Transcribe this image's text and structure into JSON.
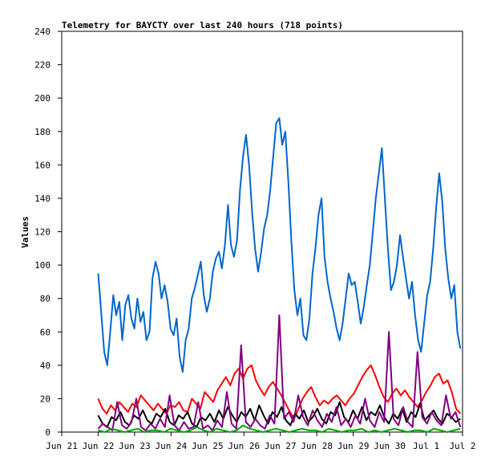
{
  "chart_data": {
    "type": "line",
    "title": "Telemetry for BAYCTY over last 240 hours (718 points)",
    "xlabel": "",
    "ylabel": "Values",
    "ylim": [
      0,
      240
    ],
    "yticks": [
      0,
      20,
      40,
      60,
      80,
      100,
      120,
      140,
      160,
      180,
      200,
      220,
      240
    ],
    "xlim": [
      "Jun 21",
      "Jul 2"
    ],
    "xticks": [
      "Jun 21",
      "Jun 22",
      "Jun 23",
      "Jun 24",
      "Jun 25",
      "Jun 26",
      "Jun 27",
      "Jun 28",
      "Jun 29",
      "Jun 30",
      "Jul 1",
      "Jul 2"
    ],
    "x_start_day": 1.0,
    "x_end_day": 10.94,
    "grid": false,
    "series": [
      {
        "color": "#0066cc",
        "values": [
          95,
          72,
          48,
          40,
          60,
          82,
          70,
          78,
          55,
          76,
          82,
          68,
          62,
          80,
          66,
          72,
          55,
          60,
          92,
          102,
          95,
          80,
          88,
          78,
          62,
          58,
          68,
          45,
          36,
          55,
          62,
          80,
          86,
          94,
          102,
          82,
          72,
          80,
          96,
          104,
          108,
          98,
          112,
          136,
          112,
          105,
          115,
          145,
          165,
          178,
          160,
          132,
          110,
          96,
          108,
          122,
          130,
          145,
          165,
          185,
          188,
          172,
          180,
          150,
          115,
          85,
          70,
          80,
          58,
          55,
          68,
          95,
          110,
          130,
          140,
          105,
          90,
          80,
          72,
          62,
          55,
          65,
          80,
          95,
          88,
          90,
          78,
          65,
          75,
          88,
          100,
          120,
          140,
          155,
          170,
          140,
          110,
          85,
          90,
          100,
          118,
          105,
          92,
          80,
          90,
          70,
          55,
          48,
          65,
          82,
          90,
          110,
          135,
          155,
          138,
          110,
          92,
          80,
          88,
          60,
          50
        ]
      },
      {
        "color": "#ff0000",
        "values": [
          20,
          14,
          11,
          16,
          13,
          18,
          15,
          12,
          17,
          15,
          22,
          19,
          16,
          13,
          17,
          14,
          11,
          16,
          15,
          18,
          13,
          12,
          20,
          17,
          14,
          24,
          21,
          18,
          25,
          29,
          33,
          28,
          35,
          38,
          32,
          38,
          40,
          31,
          26,
          22,
          27,
          30,
          26,
          22,
          17,
          12,
          8,
          14,
          20,
          24,
          27,
          21,
          16,
          19,
          17,
          20,
          22,
          19,
          16,
          20,
          23,
          28,
          33,
          37,
          40,
          34,
          27,
          21,
          18,
          23,
          26,
          22,
          25,
          21,
          18,
          15,
          19,
          24,
          28,
          33,
          35,
          29,
          31,
          24,
          14,
          11
        ]
      },
      {
        "color": "#000000",
        "values": [
          10,
          5,
          3,
          9,
          7,
          12,
          6,
          4,
          10,
          8,
          13,
          7,
          5,
          11,
          9,
          14,
          6,
          4,
          10,
          8,
          12,
          5,
          3,
          9,
          7,
          11,
          6,
          13,
          8,
          15,
          10,
          6,
          12,
          9,
          14,
          7,
          16,
          10,
          5,
          12,
          9,
          15,
          7,
          4,
          11,
          8,
          13,
          6,
          9,
          14,
          8,
          5,
          12,
          10,
          18,
          9,
          6,
          13,
          8,
          15,
          7,
          12,
          10,
          16,
          9,
          5,
          11,
          8,
          14,
          6,
          12,
          9,
          17,
          7,
          10,
          13,
          8,
          5,
          11,
          9,
          6,
          8
        ]
      },
      {
        "color": "#800080",
        "values": [
          2,
          5,
          3,
          1,
          18,
          4,
          2,
          6,
          20,
          3,
          1,
          5,
          2,
          8,
          3,
          22,
          4,
          1,
          6,
          2,
          3,
          18,
          2,
          4,
          1,
          7,
          3,
          24,
          5,
          2,
          52,
          6,
          3,
          8,
          4,
          2,
          10,
          5,
          70,
          8,
          12,
          6,
          22,
          9,
          4,
          13,
          7,
          3,
          11,
          6,
          15,
          4,
          8,
          3,
          10,
          5,
          20,
          7,
          3,
          12,
          6,
          60,
          8,
          4,
          15,
          6,
          3,
          48,
          9,
          5,
          12,
          7,
          4,
          22,
          8,
          12,
          3
        ]
      },
      {
        "color": "#00aa00",
        "values": [
          1,
          0,
          2,
          1,
          0,
          1,
          2,
          0,
          1,
          1,
          0,
          2,
          1,
          0,
          1,
          3,
          1,
          0,
          2,
          1,
          0,
          1,
          4,
          2,
          1,
          0,
          1,
          2,
          1,
          0,
          1,
          2,
          1,
          1,
          0,
          2,
          1,
          0,
          1,
          1,
          2,
          0,
          1,
          0,
          1,
          2,
          1,
          0,
          1,
          1,
          0,
          2,
          1,
          0,
          1,
          2
        ]
      }
    ]
  }
}
